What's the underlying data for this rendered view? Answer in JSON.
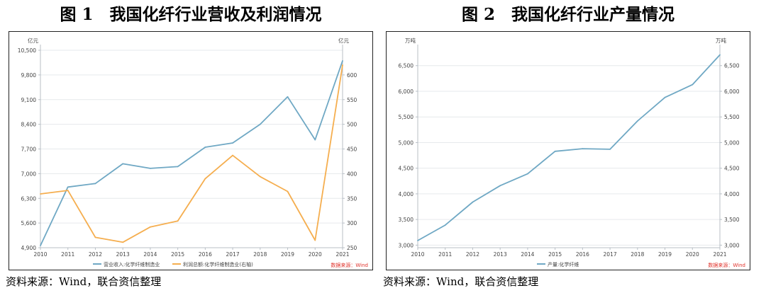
{
  "charts": [
    {
      "figure_title": "图 1　我国化纤行业营收及利润情况",
      "source": "资料来源：Wind，联合资信整理",
      "left_unit": "亿元",
      "right_unit": "亿元",
      "data_source_label": "数据来源：Wind",
      "colors": {
        "series_0": "#6fa8c4",
        "series_1": "#f5ae4f",
        "axis": "#b8bfc6",
        "grid": "#e6e9ec",
        "tick_text": "#444444",
        "source_label": "#e0322b"
      }
    },
    {
      "figure_title": "图 2　我国化纤行业产量情况",
      "source": "资料来源：Wind，联合资信整理",
      "left_unit": "万吨",
      "right_unit": "万吨",
      "data_source_label": "数据来源：Wind",
      "colors": {
        "series_0": "#6fa8c4",
        "axis": "#b8bfc6",
        "grid": "#e6e9ec",
        "tick_text": "#444444",
        "source_label": "#e0322b"
      }
    }
  ],
  "chart_data": [
    {
      "type": "line",
      "title": "我国化纤行业营收及利润情况",
      "categories": [
        "2010",
        "2011",
        "2012",
        "2013",
        "2014",
        "2015",
        "2016",
        "2017",
        "2018",
        "2019",
        "2020",
        "2021"
      ],
      "series": [
        {
          "name": "营业收入:化学纤维制造业",
          "axis": "left",
          "values": [
            4960,
            6620,
            6720,
            7280,
            7150,
            7200,
            7750,
            7870,
            8400,
            9180,
            7960,
            10200
          ]
        },
        {
          "name": "利润总额:化学纤维制造业(右轴)",
          "axis": "right",
          "values": [
            359,
            366,
            271,
            261,
            292,
            304,
            390,
            437,
            394,
            364,
            265,
            620
          ]
        }
      ],
      "y_left": {
        "min": 4900,
        "max": 10500,
        "ticks": [
          "4,900",
          "5,600",
          "6,300",
          "7,000",
          "7,700",
          "8,400",
          "9,100",
          "9,800",
          "10,500"
        ]
      },
      "y_right": {
        "min": 250,
        "max": 650,
        "ticks": [
          "250",
          "300",
          "350",
          "400",
          "450",
          "500",
          "550",
          "600"
        ]
      },
      "legend_position": "bottom",
      "grid": true
    },
    {
      "type": "line",
      "title": "我国化纤行业产量情况",
      "categories": [
        "2010",
        "2011",
        "2012",
        "2013",
        "2014",
        "2015",
        "2016",
        "2017",
        "2018",
        "2019",
        "2020",
        "2021"
      ],
      "series": [
        {
          "name": "产量:化学纤维",
          "axis": "left",
          "values": [
            3090,
            3390,
            3840,
            4160,
            4390,
            4830,
            4880,
            4870,
            5420,
            5880,
            6130,
            6710
          ]
        }
      ],
      "y_left": {
        "min": 2950,
        "max": 6800,
        "ticks": [
          "3,000",
          "3,500",
          "4,000",
          "4,500",
          "5,000",
          "5,500",
          "6,000",
          "6,500"
        ]
      },
      "y_right": {
        "min": 2950,
        "max": 6800,
        "ticks": [
          "3,000",
          "3,500",
          "4,000",
          "4,500",
          "5,000",
          "5,500",
          "6,000",
          "6,500"
        ]
      },
      "legend_position": "bottom",
      "grid": true
    }
  ]
}
